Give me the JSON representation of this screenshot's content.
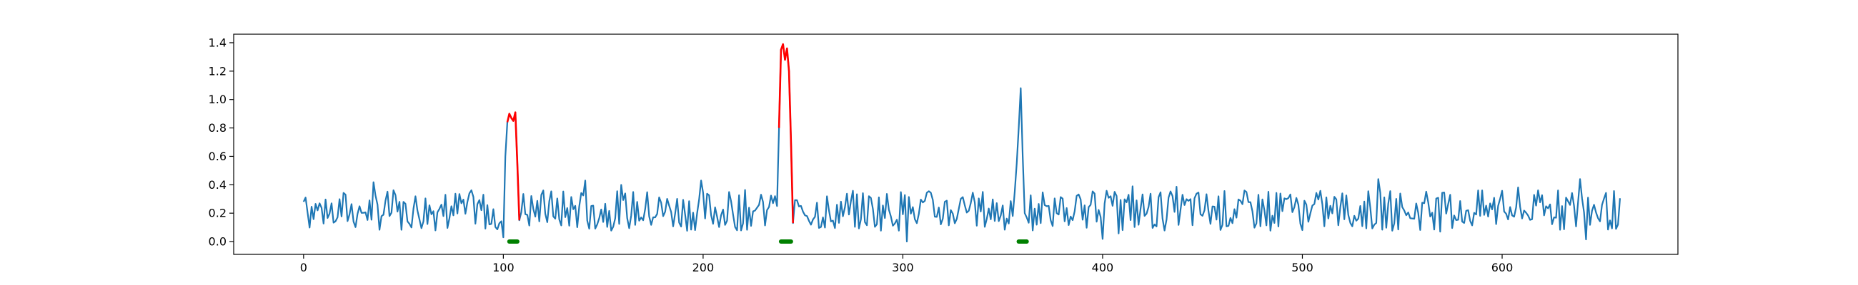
{
  "chart_data": {
    "type": "line",
    "title": "",
    "xlabel": "",
    "ylabel": "",
    "xlim": [
      -35,
      688
    ],
    "ylim": [
      -0.09,
      1.46
    ],
    "x_ticks": [
      0,
      100,
      200,
      300,
      400,
      500,
      600
    ],
    "y_ticks": [
      0.0,
      0.2,
      0.4,
      0.6,
      0.8,
      1.0,
      1.2,
      1.4
    ],
    "x_tick_labels": [
      "0",
      "100",
      "200",
      "300",
      "400",
      "500",
      "600"
    ],
    "y_tick_labels": [
      "0.0",
      "0.2",
      "0.4",
      "0.6",
      "0.8",
      "1.0",
      "1.2",
      "1.4"
    ],
    "grid": false,
    "legend": "none",
    "colors": {
      "signal": "#1f77b4",
      "highlight": "#ff0000",
      "marker": "#008000"
    },
    "signal": {
      "seed": 7,
      "length": 660,
      "base_mean": 0.22,
      "noise": 0.09,
      "approximate": true,
      "known_points": [
        {
          "x": 0,
          "y": 0.28
        },
        {
          "x": 1,
          "y": 0.31
        },
        {
          "x": 120,
          "y": 0.36
        },
        {
          "x": 141,
          "y": 0.43
        },
        {
          "x": 199,
          "y": 0.43
        },
        {
          "x": 302,
          "y": 0.0
        },
        {
          "x": 639,
          "y": 0.44
        },
        {
          "x": 658,
          "y": 0.12
        }
      ],
      "peaks": [
        {
          "x": [
            100,
            101,
            102,
            103,
            104,
            105,
            106,
            107,
            108
          ],
          "y": [
            0.03,
            0.6,
            0.84,
            0.9,
            0.87,
            0.85,
            0.91,
            0.55,
            0.15
          ]
        },
        {
          "x": [
            235,
            236,
            237,
            238,
            239,
            240,
            241,
            242,
            243,
            244,
            245
          ],
          "y": [
            0.27,
            0.32,
            0.25,
            0.8,
            1.35,
            1.39,
            1.28,
            1.36,
            1.2,
            0.7,
            0.13
          ]
        },
        {
          "x": [
            355,
            356,
            357,
            358,
            359,
            360,
            361,
            362
          ],
          "y": [
            0.18,
            0.35,
            0.55,
            0.8,
            1.08,
            0.6,
            0.2,
            0.17
          ]
        }
      ]
    },
    "highlight_segments": [
      {
        "x": [
          102,
          103,
          104,
          105,
          106,
          107,
          108
        ],
        "y": [
          0.84,
          0.9,
          0.87,
          0.85,
          0.91,
          0.55,
          0.15
        ]
      },
      {
        "x": [
          238,
          239,
          240,
          241,
          242,
          243,
          244,
          245
        ],
        "y": [
          0.8,
          1.35,
          1.39,
          1.28,
          1.36,
          1.2,
          0.7,
          0.13
        ]
      }
    ],
    "markers": [
      {
        "x_start": 103,
        "x_end": 107,
        "y": 0.0
      },
      {
        "x_start": 239,
        "x_end": 244,
        "y": 0.0
      },
      {
        "x_start": 358,
        "x_end": 362,
        "y": 0.0
      }
    ]
  }
}
